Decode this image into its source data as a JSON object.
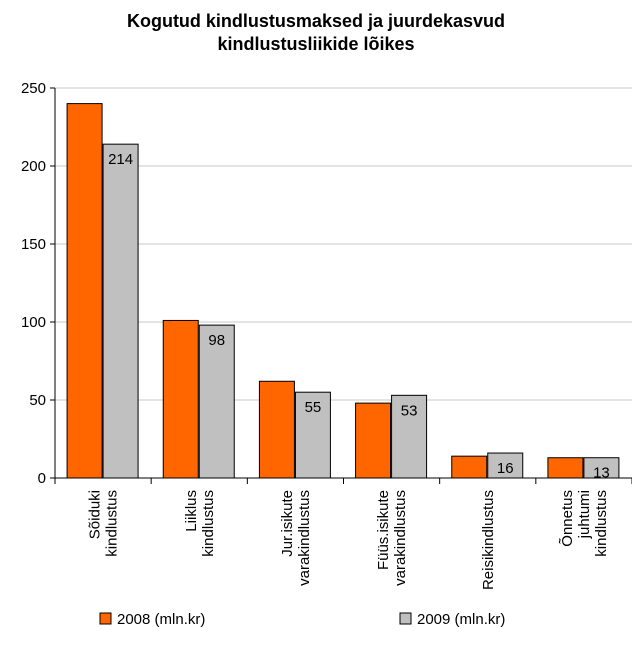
{
  "chart_data": {
    "type": "bar",
    "title_lines": [
      "Kogutud kindlustusmaksed ja juurdekasvud",
      "kindlustusliikide lõikes"
    ],
    "categories": [
      [
        "Sõiduki",
        "kindlustus"
      ],
      [
        "Liiklus",
        "kindlustus"
      ],
      [
        "Jur.isikute",
        "varakindlustus"
      ],
      [
        "Füüs.isikute",
        "varakindlustus"
      ],
      [
        "Reisikindlustus"
      ],
      [
        "Õnnetus",
        "juhtumi",
        "kindlustus"
      ]
    ],
    "series": [
      {
        "name": "2008 (mln.kr)",
        "values": [
          240,
          101,
          62,
          48,
          14,
          13
        ],
        "color": "#ff6600",
        "labels": []
      },
      {
        "name": "2009 (mln.kr)",
        "values": [
          214,
          98,
          55,
          53,
          16,
          13
        ],
        "color": "#c0c0c0",
        "labels": [
          "214",
          "98",
          "55",
          "53",
          "16",
          "13"
        ]
      }
    ],
    "ylim": [
      0,
      250
    ],
    "yticks": [
      0,
      50,
      100,
      150,
      200,
      250
    ],
    "grid": true,
    "legend": "bottom"
  }
}
